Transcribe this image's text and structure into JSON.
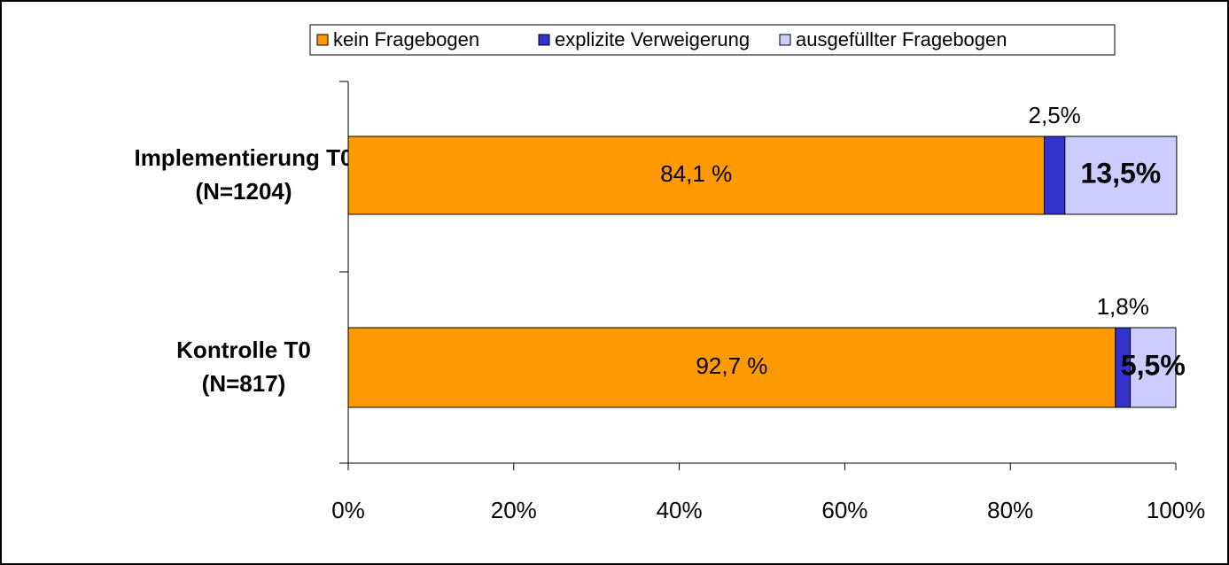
{
  "chart_data": {
    "type": "stacked-barh",
    "categories": [
      [
        "Implementierung T0",
        "(N=1204)"
      ],
      [
        "Kontrolle T0",
        "(N=817)"
      ]
    ],
    "series": [
      {
        "name": "kein Fragebogen",
        "color": "#ff9900",
        "values": [
          84.1,
          92.7
        ],
        "value_labels": [
          "84,1 %",
          "92,7 %"
        ]
      },
      {
        "name": "explizite Verweigerung",
        "color": "#3333cc",
        "values": [
          2.5,
          1.8
        ],
        "value_labels": [
          "2,5%",
          "1,8%"
        ]
      },
      {
        "name": "ausgefüllter Fragebogen",
        "color": "#ccccff",
        "values": [
          13.5,
          5.5
        ],
        "value_labels": [
          "13,5%",
          "5,5%"
        ]
      }
    ],
    "xlim": [
      0,
      100
    ],
    "xticks": [
      {
        "value": 0,
        "label": "0%"
      },
      {
        "value": 20,
        "label": "20%"
      },
      {
        "value": 40,
        "label": "40%"
      },
      {
        "value": 60,
        "label": "60%"
      },
      {
        "value": 80,
        "label": "80%"
      },
      {
        "value": 100,
        "label": "100%"
      }
    ],
    "legend": "top"
  }
}
